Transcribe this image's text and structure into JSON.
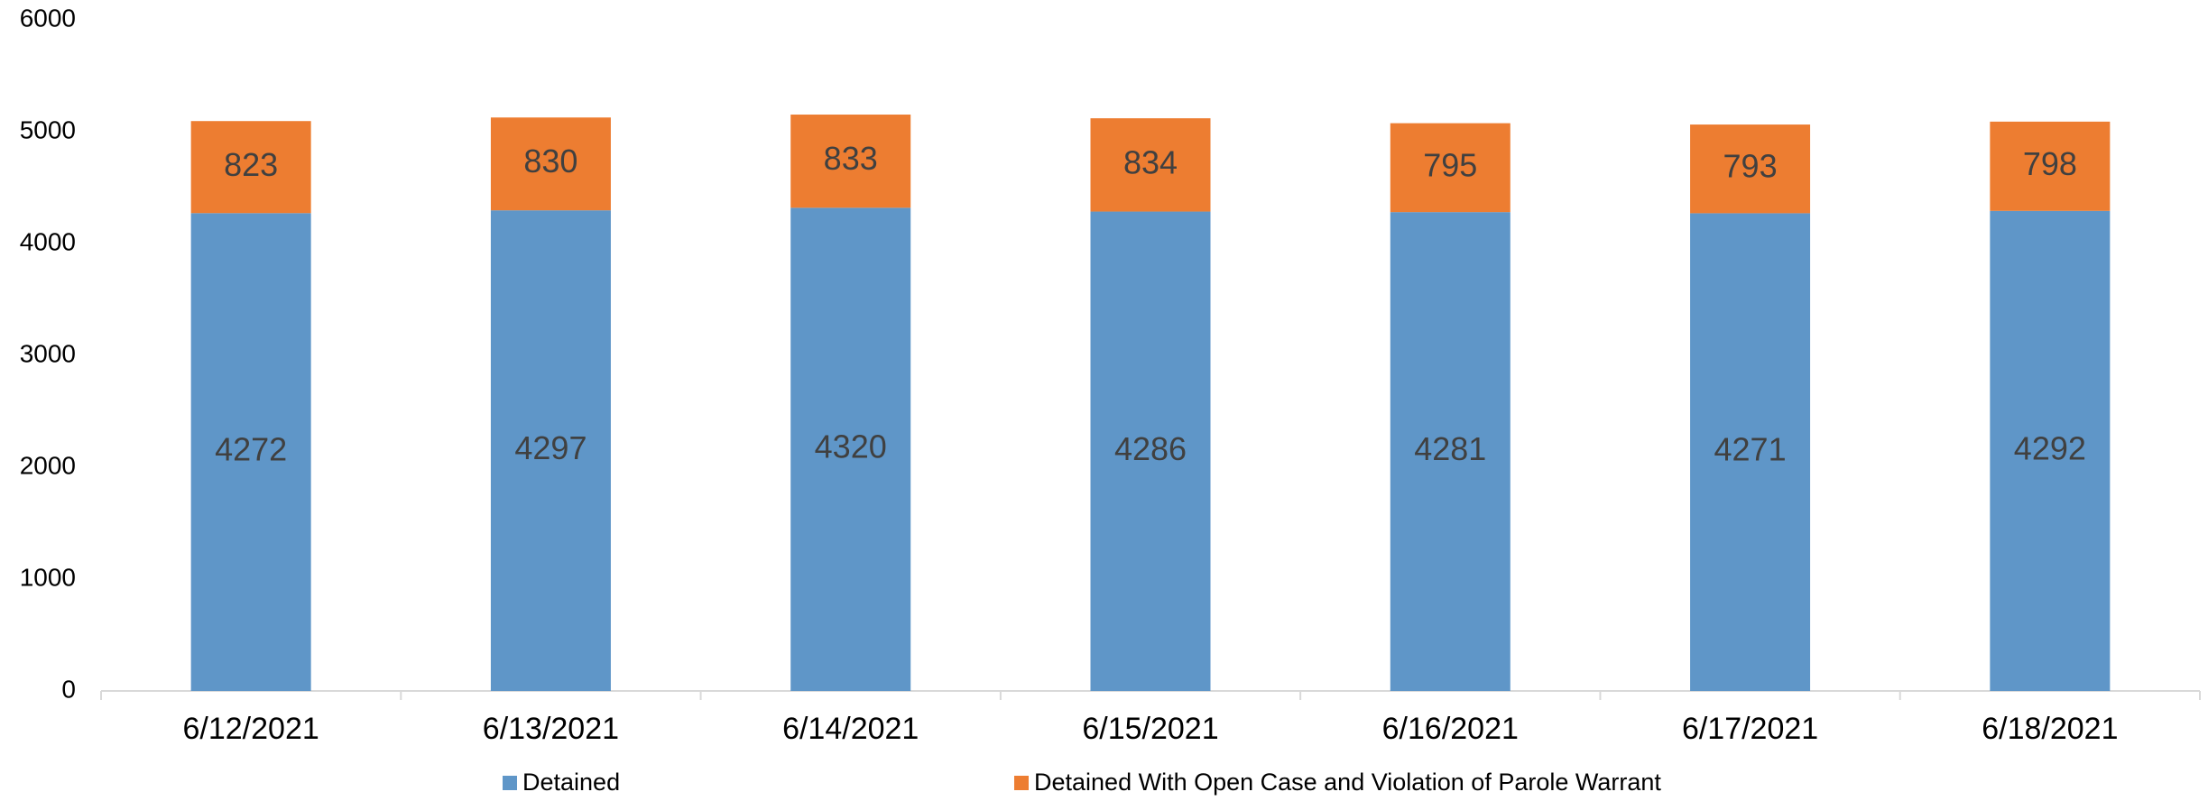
{
  "chart_data": {
    "type": "stacked_bar",
    "categories": [
      "6/12/2021",
      "6/13/2021",
      "6/14/2021",
      "6/15/2021",
      "6/16/2021",
      "6/17/2021",
      "6/18/2021"
    ],
    "series": [
      {
        "name": "Detained",
        "color": "#5f96c8",
        "values": [
          4272,
          4297,
          4320,
          4286,
          4281,
          4271,
          4292
        ]
      },
      {
        "name": "Detained With Open Case and Violation of Parole Warrant",
        "color": "#ed7d31",
        "values": [
          823,
          830,
          833,
          834,
          795,
          793,
          798
        ]
      }
    ],
    "ylim": [
      0,
      6000
    ],
    "yticks": [
      0,
      1000,
      2000,
      3000,
      4000,
      5000,
      6000
    ],
    "grid": false,
    "legend": "bottom"
  }
}
